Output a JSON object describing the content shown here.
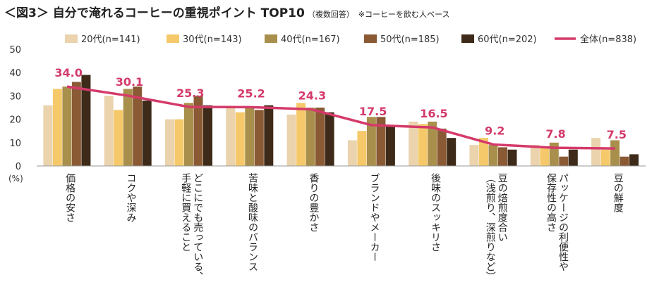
{
  "title": {
    "main": "＜図3＞ 自分で淹れるコーヒーの重視ポイント TOP10",
    "sub1": "（複数回答）",
    "sub2": "※コーヒーを飲む人ベース"
  },
  "colors": {
    "s20": "#ead3ad",
    "s30": "#f5c96a",
    "s40": "#a98f4c",
    "s50": "#8a5a35",
    "s60": "#3e2a18",
    "total": "#d43a6a"
  },
  "chart_data": {
    "type": "bar",
    "unit_label": "(%)",
    "ylim": [
      0,
      50
    ],
    "yticks": [
      "0",
      "10",
      "20",
      "30",
      "40",
      "50"
    ],
    "categories": [
      "価格の安さ",
      "コクや深み",
      "どこにでも売っている、手軽に買えること",
      "苦味と酸味のバランス",
      "香りの豊かさ",
      "ブランドやメーカー",
      "後味のスッキリさ",
      "豆の焙煎度合い（浅煎り、深煎りなど）",
      "パッケージの利便性や保存性の高さ",
      "豆の鮮度"
    ],
    "category_lines": [
      [
        "価格の安さ"
      ],
      [
        "コクや深み"
      ],
      [
        "どこにでも売っている、",
        "手軽に買えること"
      ],
      [
        "苦味と酸味のバランス"
      ],
      [
        "香りの豊かさ"
      ],
      [
        "ブランドやメーカー"
      ],
      [
        "後味のスッキリさ"
      ],
      [
        "豆の焙煎度合い",
        "（浅煎り、深煎りなど）"
      ],
      [
        "パッケージの利便性や",
        "保存性の高さ"
      ],
      [
        "豆の鮮度"
      ]
    ],
    "series": [
      {
        "name": "20代(n=141)",
        "color_key": "s20",
        "values": [
          26,
          30,
          20,
          25,
          22,
          11,
          19,
          9,
          9,
          12
        ]
      },
      {
        "name": "30代(n=143)",
        "color_key": "s30",
        "values": [
          33,
          24,
          20,
          23,
          27,
          15,
          18,
          12,
          8,
          7
        ]
      },
      {
        "name": "40代(n=167)",
        "color_key": "s40",
        "values": [
          34,
          33,
          27,
          25,
          25,
          21,
          19,
          9,
          10,
          11
        ]
      },
      {
        "name": "50代(n=185)",
        "color_key": "s50",
        "values": [
          36,
          34,
          30,
          24,
          25,
          21,
          16,
          8,
          4,
          4
        ]
      },
      {
        "name": "60代(n=202)",
        "color_key": "s60",
        "values": [
          39,
          28,
          26,
          26,
          23,
          17,
          12,
          7,
          7,
          5
        ]
      }
    ],
    "total": {
      "name": "全体(n=838)",
      "values": [
        34.0,
        30.1,
        25.3,
        25.2,
        24.3,
        17.5,
        16.5,
        9.2,
        7.8,
        7.5
      ],
      "labels": [
        "34.0",
        "30.1",
        "25.3",
        "25.2",
        "24.3",
        "17.5",
        "16.5",
        "9.2",
        "7.8",
        "7.5"
      ]
    },
    "legend_position": "top",
    "grid": false
  }
}
